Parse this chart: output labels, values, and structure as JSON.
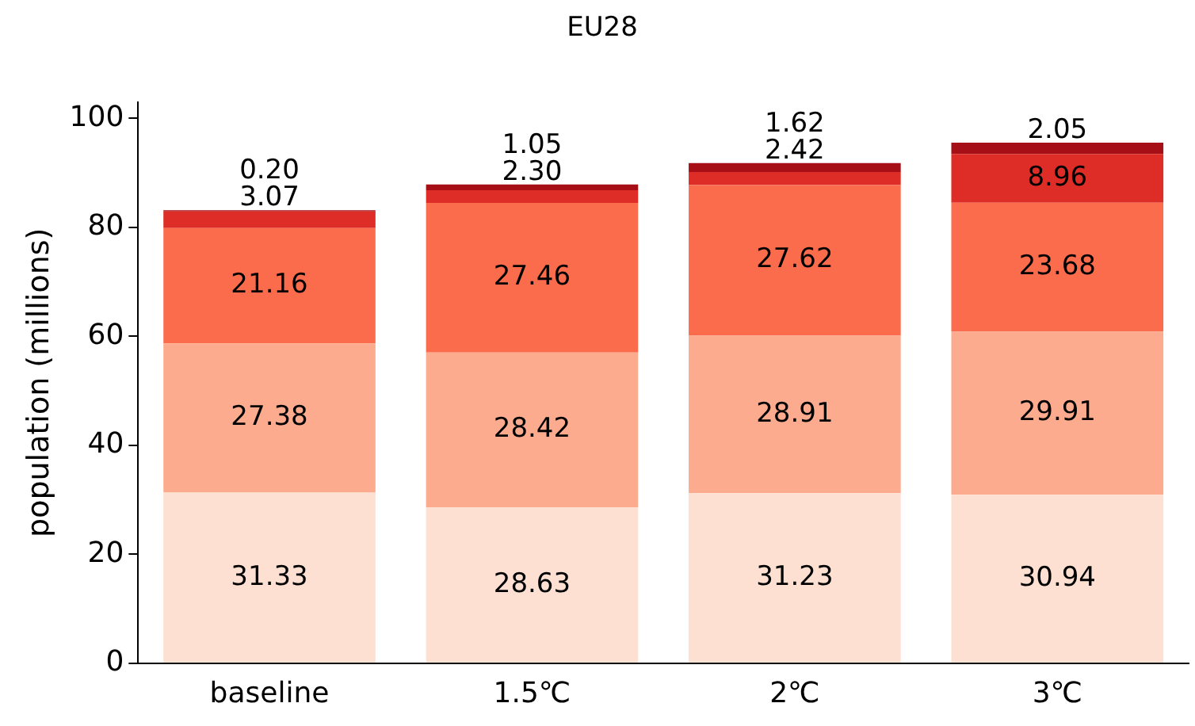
{
  "chart_data": {
    "type": "bar",
    "stacked": true,
    "title": "EU28",
    "ylabel": "population (millions)",
    "categories": [
      "baseline",
      "1.5℃",
      "2℃",
      "3℃"
    ],
    "series": [
      {
        "color": "#fee0d2",
        "values": [
          31.33,
          28.63,
          31.23,
          30.94
        ],
        "value_labels": [
          "31.33",
          "28.63",
          "31.23",
          "30.94"
        ]
      },
      {
        "color": "#fcab8f",
        "values": [
          27.38,
          28.42,
          28.91,
          29.91
        ],
        "value_labels": [
          "27.38",
          "28.42",
          "28.91",
          "29.91"
        ]
      },
      {
        "color": "#fb6c4c",
        "values": [
          21.16,
          27.46,
          27.62,
          23.68
        ],
        "value_labels": [
          "21.16",
          "27.46",
          "27.62",
          "23.68"
        ]
      },
      {
        "color": "#de2d26",
        "values": [
          3.07,
          2.3,
          2.42,
          8.96
        ],
        "value_labels": [
          "3.07",
          "2.30",
          "2.42",
          "8.96"
        ]
      },
      {
        "color": "#a50f15",
        "values": [
          0.2,
          1.05,
          1.62,
          2.05
        ],
        "value_labels": [
          "0.20",
          "1.05",
          "1.62",
          "2.05"
        ]
      }
    ],
    "ylim": [
      0,
      103
    ],
    "yticks": [
      0,
      20,
      40,
      60,
      80,
      100
    ],
    "grid": false,
    "legend": false
  }
}
